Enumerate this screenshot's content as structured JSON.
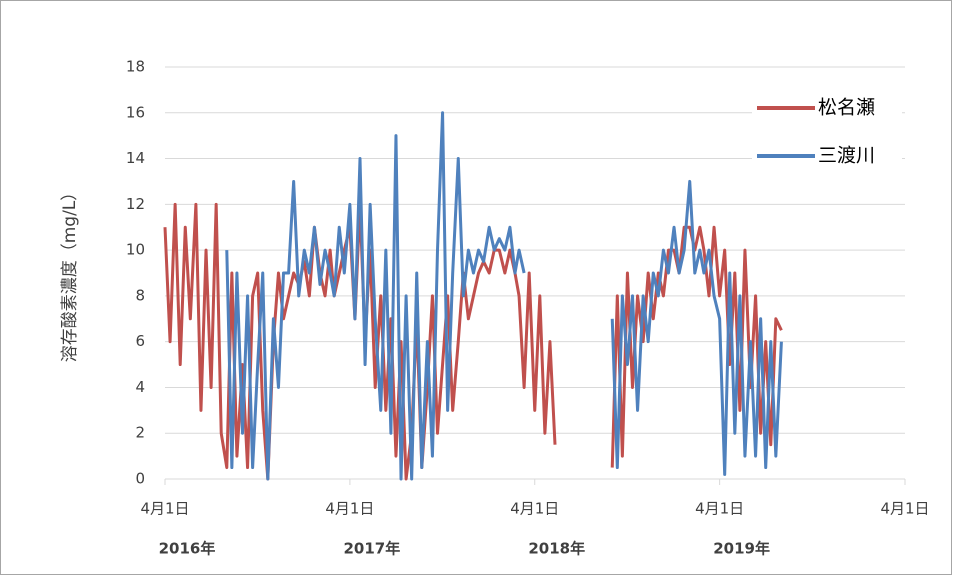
{
  "chart_data": {
    "type": "line",
    "y_label": "溶存酸素濃度（mg/L）",
    "x": [
      "2016-04-01",
      "2016-04-11",
      "2016-04-21",
      "2016-05-01",
      "2016-05-11",
      "2016-05-21",
      "2016-06-01",
      "2016-06-11",
      "2016-06-21",
      "2016-07-01",
      "2016-07-11",
      "2016-07-21",
      "2016-08-01",
      "2016-08-11",
      "2016-08-21",
      "2016-09-01",
      "2016-09-11",
      "2016-09-21",
      "2016-10-01",
      "2016-10-11",
      "2016-10-21",
      "2016-11-01",
      "2016-11-11",
      "2016-11-21",
      "2016-12-01",
      "2016-12-11",
      "2016-12-21",
      "2017-01-01",
      "2017-01-11",
      "2017-01-21",
      "2017-02-01",
      "2017-02-11",
      "2017-02-21",
      "2017-03-01",
      "2017-03-11",
      "2017-03-21",
      "2017-04-01",
      "2017-04-11",
      "2017-04-21",
      "2017-05-01",
      "2017-05-11",
      "2017-05-21",
      "2017-06-01",
      "2017-06-11",
      "2017-06-21",
      "2017-07-01",
      "2017-07-11",
      "2017-07-21",
      "2017-08-01",
      "2017-08-11",
      "2017-08-21",
      "2017-09-01",
      "2017-09-11",
      "2017-09-21",
      "2017-10-01",
      "2017-10-11",
      "2017-10-21",
      "2017-11-01",
      "2017-11-11",
      "2017-11-21",
      "2017-12-01",
      "2017-12-11",
      "2017-12-21",
      "2018-01-01",
      "2018-01-11",
      "2018-01-21",
      "2018-02-01",
      "2018-02-11",
      "2018-02-21",
      "2018-03-01",
      "2018-03-11",
      "2018-03-21",
      "2018-04-01",
      "2018-04-11",
      "2018-04-21",
      "2018-05-01",
      "2018-05-11",
      "2018-05-21",
      "2018-06-01",
      "2018-06-11",
      "2018-06-21",
      "2018-07-01",
      "2018-07-11",
      "2018-07-21",
      "2018-08-01",
      "2018-08-11",
      "2018-08-21",
      "2018-09-01",
      "2018-09-11",
      "2018-09-21",
      "2018-10-01",
      "2018-10-11",
      "2018-10-21",
      "2018-11-01",
      "2018-11-11",
      "2018-11-21",
      "2018-12-01",
      "2018-12-11",
      "2018-12-21",
      "2019-01-01",
      "2019-01-11",
      "2019-01-21",
      "2019-02-01",
      "2019-02-11",
      "2019-02-21",
      "2019-03-01",
      "2019-03-11",
      "2019-03-21",
      "2019-04-01",
      "2019-04-11",
      "2019-04-21",
      "2019-05-01",
      "2019-05-11",
      "2019-05-21",
      "2019-06-01",
      "2019-06-11",
      "2019-06-21",
      "2019-07-01",
      "2019-07-11",
      "2019-07-21",
      "2019-08-01",
      "2019-08-11",
      "2019-08-21"
    ],
    "series": [
      {
        "name": "松名瀬",
        "color": "#c0504d",
        "values": [
          11,
          6,
          12,
          5,
          11,
          7,
          12,
          3,
          10,
          4,
          12,
          2,
          0.5,
          9,
          1,
          5,
          0.5,
          8,
          9,
          3,
          0,
          6,
          9,
          7,
          8,
          9,
          8.5,
          9.5,
          8,
          11,
          9,
          8,
          10,
          8,
          9,
          10,
          11,
          7,
          12,
          6,
          10,
          4,
          8,
          3,
          7,
          1,
          6,
          0,
          2,
          7,
          0.5,
          4,
          8,
          2,
          5,
          8,
          3,
          6,
          9,
          7,
          8,
          9,
          9.5,
          9,
          10,
          10,
          9,
          10,
          9,
          8,
          4,
          9,
          3,
          8,
          2,
          6,
          1.5,
          null,
          null,
          null,
          null,
          null,
          null,
          null,
          null,
          null,
          null,
          0.5,
          8,
          1,
          9,
          4,
          8,
          6,
          9,
          7,
          9,
          8,
          10,
          10,
          9,
          11,
          11,
          10,
          11,
          10,
          8,
          11,
          8,
          10,
          5,
          9,
          3,
          10,
          4,
          8,
          2,
          6,
          1.5,
          7,
          6.5,
          null,
          null
        ]
      },
      {
        "name": "三渡川",
        "color": "#4f81bd",
        "values": [
          null,
          null,
          null,
          null,
          null,
          null,
          null,
          null,
          null,
          null,
          null,
          null,
          10,
          0.5,
          9,
          2,
          8,
          0.5,
          5,
          9,
          0,
          7,
          4,
          9,
          9,
          13,
          8,
          10,
          9,
          11,
          8.5,
          10,
          9,
          8,
          11,
          9,
          12,
          7,
          14,
          5,
          12,
          7,
          3,
          10,
          2,
          15,
          0,
          8,
          0,
          9,
          0.5,
          6,
          1,
          10,
          16,
          3,
          9,
          14,
          8,
          10,
          9,
          10,
          9.5,
          11,
          10,
          10.5,
          10,
          11,
          9,
          10,
          9,
          null,
          null,
          null,
          null,
          null,
          null,
          null,
          null,
          null,
          null,
          null,
          null,
          null,
          null,
          null,
          null,
          7,
          0.5,
          8,
          5,
          8,
          3,
          8,
          6,
          9,
          8,
          10,
          9,
          11,
          9,
          10,
          13,
          9,
          10,
          9,
          10,
          8,
          7,
          0.2,
          9,
          2,
          8,
          1,
          6,
          1,
          7,
          0.5,
          6,
          1,
          6,
          null,
          null
        ]
      }
    ],
    "xlim": [
      "2016-04-01",
      "2020-04-01"
    ],
    "xticks": [
      {
        "value": "2016-04-01",
        "label": "4月1日"
      },
      {
        "value": "2017-04-01",
        "label": "4月1日"
      },
      {
        "value": "2018-04-01",
        "label": "4月1日"
      },
      {
        "value": "2019-04-01",
        "label": "4月1日"
      },
      {
        "value": "2020-04-01",
        "label": "4月1日"
      }
    ],
    "xtick_groups": [
      "2016年",
      "2017年",
      "2018年",
      "2019年"
    ],
    "ylim": [
      0,
      18
    ],
    "yticks": [
      0,
      2,
      4,
      6,
      8,
      10,
      12,
      14,
      16,
      18
    ],
    "grid": true,
    "legend": "upper-right"
  }
}
